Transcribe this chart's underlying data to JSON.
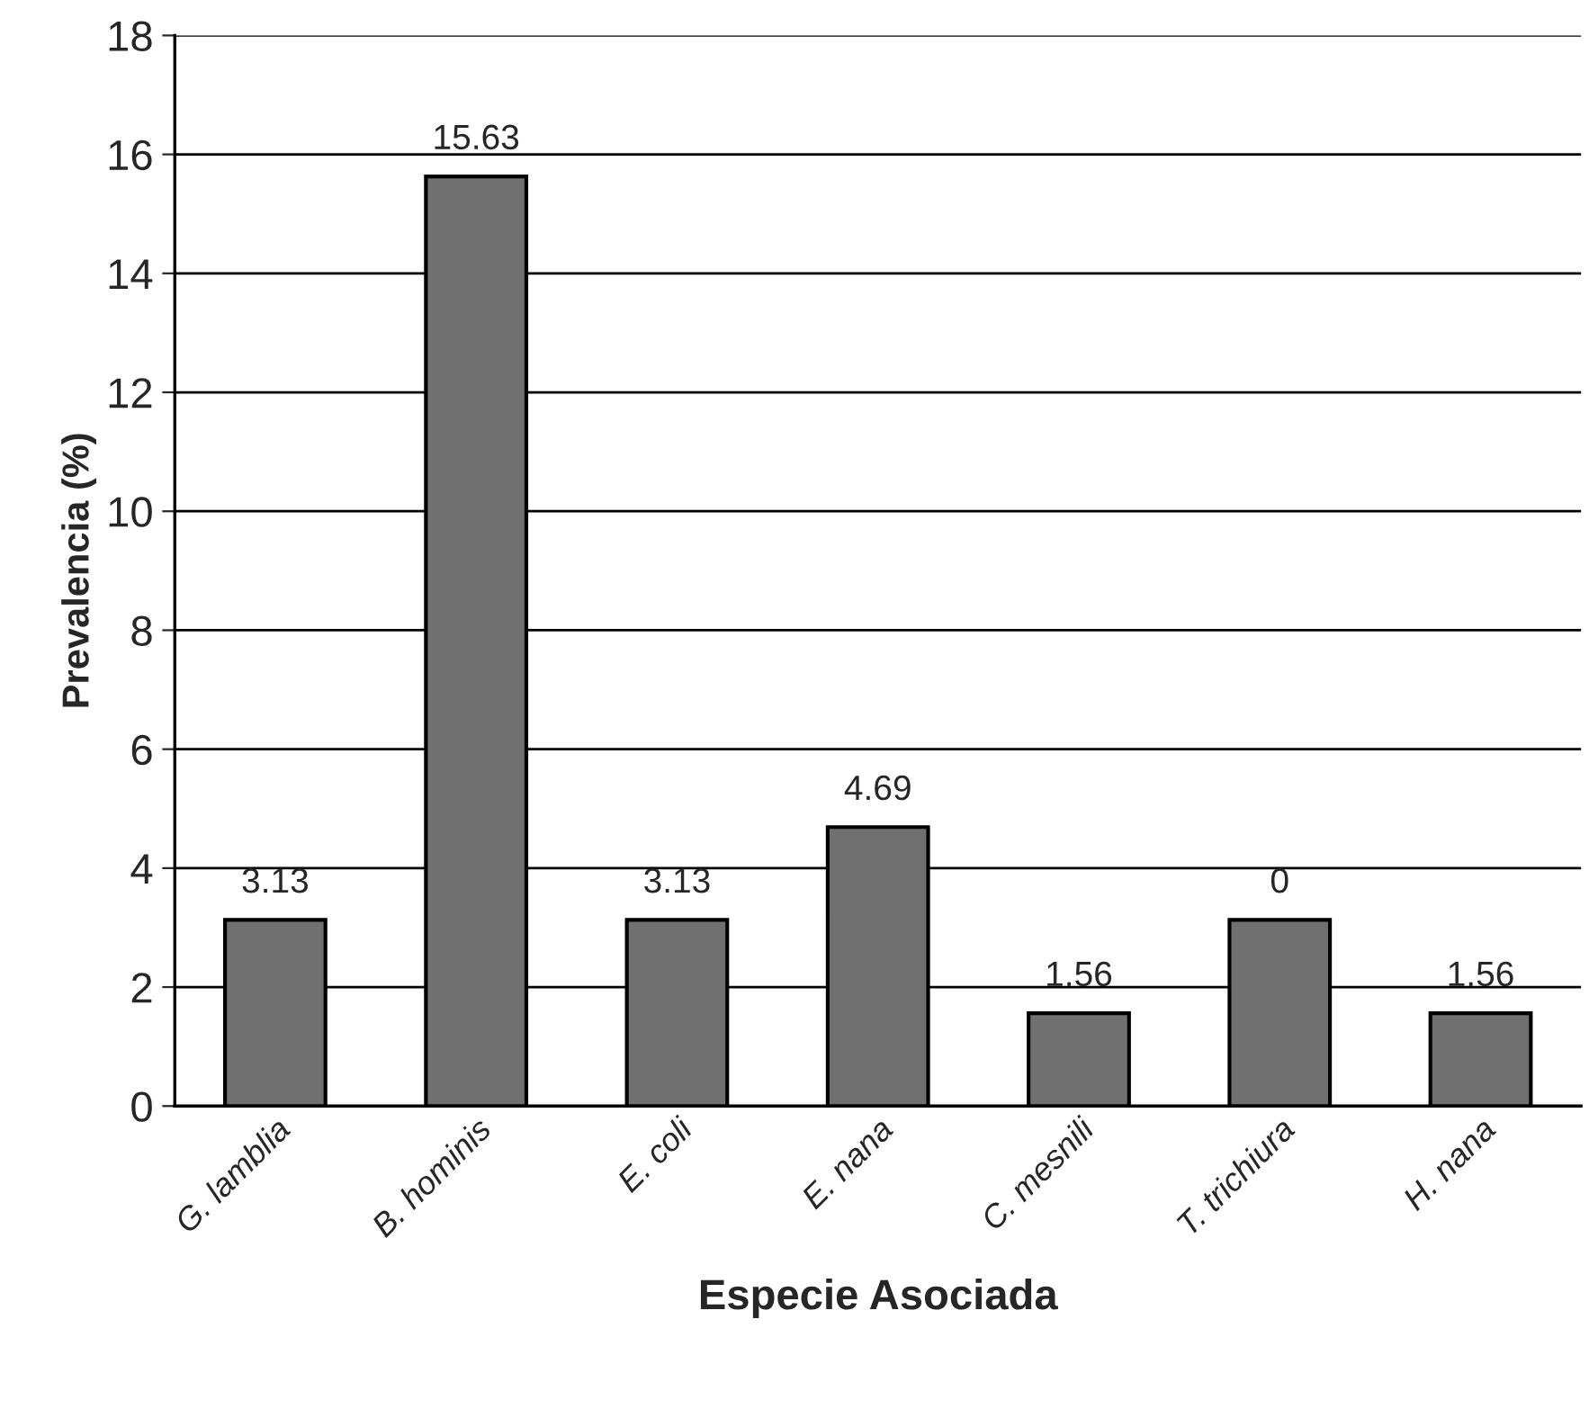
{
  "chart_data": {
    "type": "bar",
    "xlabel": "Especie Asociada",
    "ylabel": "Prevalencia (%)",
    "categories": [
      "G. lamblia",
      "B. hominis",
      "E. coli",
      "E. nana",
      "C. mesnili",
      "T. trichiura",
      "H. nana"
    ],
    "values": [
      3.13,
      15.63,
      3.13,
      4.69,
      1.56,
      3.13,
      1.56
    ],
    "value_labels": [
      "3.13",
      "15.63",
      "3.13",
      "4.69",
      "1.56",
      null,
      "1.56"
    ],
    "annotations": [
      {
        "text": "0",
        "x": "T. trichiura",
        "y": 3.13
      }
    ],
    "color": "#707070",
    "ylim": [
      0,
      18
    ],
    "yticks": [
      0,
      2,
      4,
      6,
      8,
      10,
      12,
      14,
      16,
      18
    ],
    "grid": "y",
    "legend": false
  }
}
